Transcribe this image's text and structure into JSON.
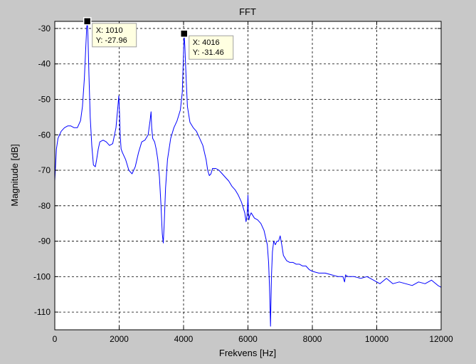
{
  "chart_data": {
    "type": "line",
    "title": "FFT",
    "xlabel": "Frekvens [Hz]",
    "ylabel": "Magnitude [dB]",
    "xlim": [
      0,
      12000
    ],
    "ylim": [
      -115,
      -28
    ],
    "xticks": [
      0,
      2000,
      4000,
      6000,
      8000,
      10000,
      12000
    ],
    "yticks": [
      -110,
      -100,
      -90,
      -80,
      -70,
      -60,
      -50,
      -40,
      -30
    ],
    "grid": true,
    "series": [
      {
        "color": "#0000ff",
        "x": [
          0,
          50,
          100,
          200,
          300,
          400,
          500,
          600,
          700,
          800,
          860,
          920,
          960,
          990,
          1010,
          1030,
          1060,
          1100,
          1150,
          1200,
          1260,
          1300,
          1350,
          1400,
          1500,
          1600,
          1700,
          1800,
          1900,
          1960,
          1990,
          2010,
          2030,
          2060,
          2100,
          2200,
          2300,
          2400,
          2500,
          2600,
          2700,
          2800,
          2900,
          2960,
          2990,
          3010,
          3040,
          3100,
          3150,
          3200,
          3250,
          3300,
          3340,
          3370,
          3400,
          3440,
          3500,
          3600,
          3700,
          3800,
          3900,
          3960,
          3990,
          4016,
          4040,
          4080,
          4120,
          4200,
          4300,
          4400,
          4500,
          4600,
          4700,
          4750,
          4800,
          4850,
          4900,
          5000,
          5100,
          5200,
          5300,
          5400,
          5500,
          5600,
          5700,
          5800,
          5900,
          5940,
          5970,
          5990,
          6000,
          6010,
          6030,
          6050,
          6100,
          6200,
          6300,
          6400,
          6500,
          6550,
          6600,
          6640,
          6670,
          6700,
          6730,
          6760,
          6800,
          6850,
          6900,
          6950,
          7000,
          7050,
          7100,
          7200,
          7300,
          7400,
          7500,
          7600,
          7700,
          7800,
          7900,
          8000,
          8200,
          8400,
          8600,
          8800,
          8950,
          9000,
          9030,
          9100,
          9300,
          9500,
          9700,
          9900,
          10100,
          10300,
          10500,
          10700,
          10900,
          11100,
          11300,
          11500,
          11700,
          11900,
          12000
        ],
        "y": [
          -73,
          -64,
          -61,
          -59,
          -58,
          -57.5,
          -57.5,
          -58,
          -58,
          -56,
          -52,
          -44,
          -36,
          -30,
          -27.96,
          -32,
          -43,
          -55,
          -63,
          -68.5,
          -69,
          -67,
          -64,
          -62,
          -61.5,
          -62,
          -63,
          -62.5,
          -58,
          -52,
          -49,
          -54,
          -60,
          -64,
          -65,
          -67,
          -70,
          -71,
          -69,
          -65,
          -62,
          -61.5,
          -60,
          -56,
          -53.5,
          -58,
          -61,
          -62,
          -64,
          -67,
          -72,
          -80,
          -88,
          -90.5,
          -85,
          -75,
          -67,
          -61,
          -58,
          -56,
          -53,
          -48,
          -40,
          -31.46,
          -35,
          -44,
          -52,
          -56.5,
          -58,
          -59,
          -61,
          -63,
          -67,
          -70,
          -71.5,
          -71,
          -69.5,
          -69.5,
          -70,
          -71,
          -72,
          -73,
          -74.5,
          -75.5,
          -77,
          -79,
          -82,
          -84.5,
          -83,
          -80,
          -77,
          -81,
          -84,
          -83,
          -82,
          -83.5,
          -84,
          -85,
          -87,
          -89,
          -91,
          -96,
          -103,
          -114,
          -100,
          -93,
          -90,
          -91,
          -90,
          -90,
          -88.5,
          -91,
          -94,
          -95.5,
          -96,
          -96,
          -96.5,
          -96.5,
          -97,
          -97,
          -98,
          -98.5,
          -99,
          -99,
          -99.5,
          -100,
          -100,
          -101.5,
          -99.5,
          -100,
          -100,
          -100.5,
          -100,
          -101,
          -102,
          -100.5,
          -102,
          -101.5,
          -102,
          -102.5,
          -101.5,
          -102,
          -101,
          -102.5,
          -103
        ]
      }
    ]
  },
  "datatips": [
    {
      "x_label": "X: 1010",
      "y_label": "Y: -27.96",
      "x": 1010,
      "y": -27.96
    },
    {
      "x_label": "X: 4016",
      "y_label": "Y: -31.46",
      "x": 4016,
      "y": -31.46
    }
  ]
}
